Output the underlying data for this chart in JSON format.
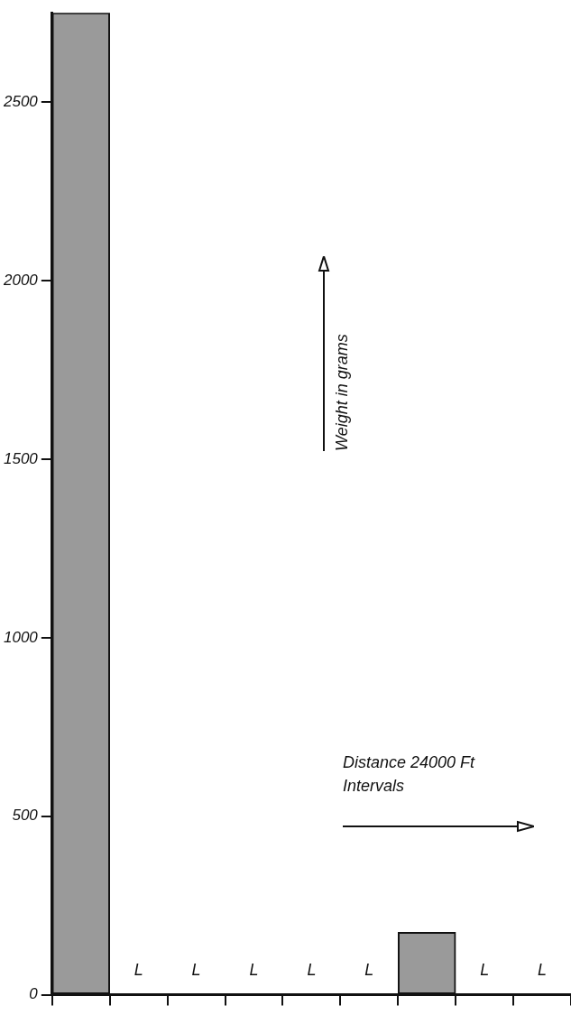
{
  "chart_data": {
    "type": "bar",
    "xlabel": "Distance 24000 Ft Intervals",
    "ylabel": "Weight in grams",
    "categories": [
      null,
      null,
      null,
      null,
      null,
      null,
      null,
      null,
      null
    ],
    "series": [
      {
        "color": "#9a9a9a",
        "values": [
          2750,
          0,
          0,
          0,
          0,
          0,
          175,
          0,
          0
        ],
        "value_labels": [
          null,
          "L",
          "L",
          "L",
          "L",
          "L",
          null,
          "L",
          "L"
        ]
      }
    ],
    "ylim": [
      0,
      2750
    ],
    "yticks": [
      0,
      500,
      1000,
      1500,
      2000,
      2500
    ],
    "grid": false,
    "legend": false
  }
}
